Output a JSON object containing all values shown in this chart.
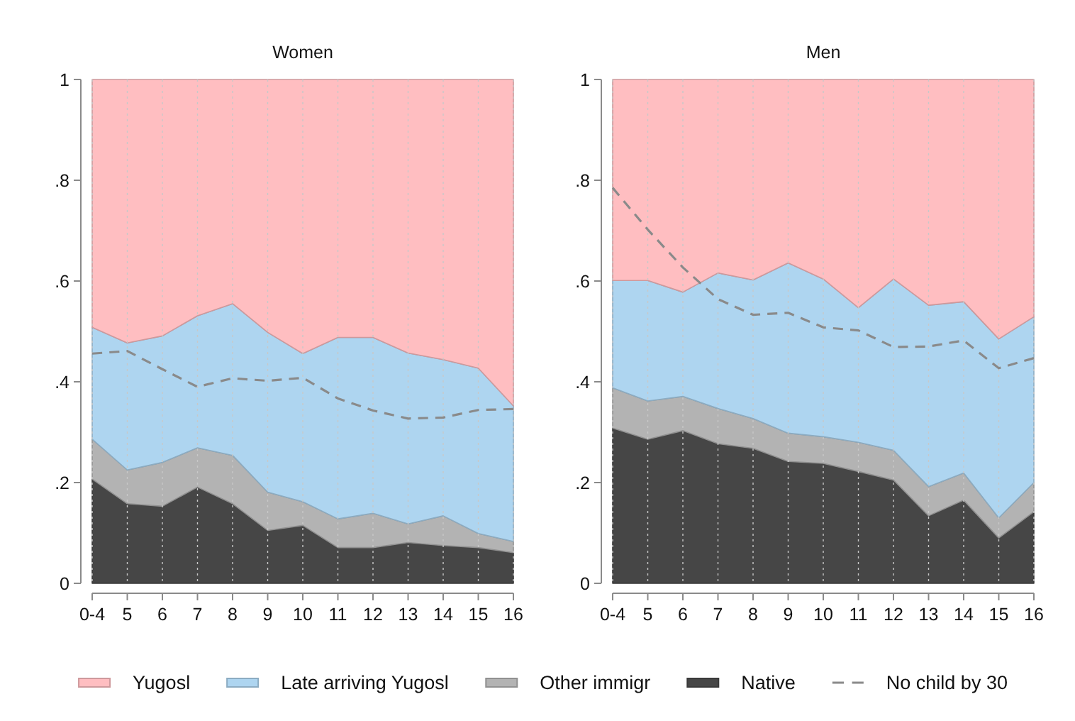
{
  "chart_data": [
    {
      "type": "area",
      "title": "Women",
      "stacked": true,
      "categories": [
        "0-4",
        "5",
        "6",
        "7",
        "8",
        "9",
        "10",
        "11",
        "12",
        "13",
        "14",
        "15",
        "16"
      ],
      "ylim": [
        0,
        1
      ],
      "yticks": [
        {
          "value": 0,
          "label": "0"
        },
        {
          "value": 0.2,
          "label": ".2"
        },
        {
          "value": 0.4,
          "label": ".4"
        },
        {
          "value": 0.6,
          "label": ".6"
        },
        {
          "value": 0.8,
          "label": ".8"
        },
        {
          "value": 1,
          "label": "1"
        }
      ],
      "grid": "x",
      "legend": "bottom",
      "series": [
        {
          "name": "Native",
          "color": "#464646",
          "values": [
            0.207,
            0.158,
            0.153,
            0.191,
            0.158,
            0.105,
            0.115,
            0.071,
            0.071,
            0.081,
            0.075,
            0.071,
            0.061
          ]
        },
        {
          "name": "Other immigr",
          "color": "#b3b3b3",
          "values": [
            0.079,
            0.067,
            0.087,
            0.078,
            0.096,
            0.076,
            0.047,
            0.057,
            0.068,
            0.037,
            0.059,
            0.028,
            0.022
          ]
        },
        {
          "name": "Late arriving Yugosl",
          "color": "#aed5f0",
          "values": [
            0.222,
            0.252,
            0.251,
            0.262,
            0.301,
            0.317,
            0.294,
            0.36,
            0.349,
            0.339,
            0.31,
            0.328,
            0.269
          ]
        },
        {
          "name": "Yugosl",
          "color": "#ffbec1",
          "values": [
            0.492,
            0.523,
            0.509,
            0.469,
            0.445,
            0.502,
            0.544,
            0.512,
            0.512,
            0.543,
            0.556,
            0.573,
            0.648
          ]
        },
        {
          "name": "No child by 30",
          "type": "line",
          "line_style": "dashed",
          "color": "#8a8a8a",
          "values": [
            0.456,
            0.461,
            0.425,
            0.39,
            0.407,
            0.402,
            0.408,
            0.367,
            0.343,
            0.327,
            0.329,
            0.344,
            0.346
          ]
        }
      ]
    },
    {
      "type": "area",
      "title": "Men",
      "stacked": true,
      "categories": [
        "0-4",
        "5",
        "6",
        "7",
        "8",
        "9",
        "10",
        "11",
        "12",
        "13",
        "14",
        "15",
        "16"
      ],
      "ylim": [
        0,
        1
      ],
      "yticks": [
        {
          "value": 0,
          "label": "0"
        },
        {
          "value": 0.2,
          "label": ".2"
        },
        {
          "value": 0.4,
          "label": ".4"
        },
        {
          "value": 0.6,
          "label": ".6"
        },
        {
          "value": 0.8,
          "label": ".8"
        },
        {
          "value": 1,
          "label": "1"
        }
      ],
      "grid": "x",
      "series": [
        {
          "color": "#464646",
          "values": [
            0.308,
            0.286,
            0.303,
            0.277,
            0.268,
            0.242,
            0.238,
            0.222,
            0.205,
            0.134,
            0.165,
            0.09,
            0.142
          ]
        },
        {
          "color": "#b3b3b3",
          "values": [
            0.08,
            0.076,
            0.068,
            0.07,
            0.059,
            0.056,
            0.053,
            0.058,
            0.059,
            0.058,
            0.054,
            0.04,
            0.058
          ]
        },
        {
          "color": "#aed5f0",
          "values": [
            0.213,
            0.239,
            0.207,
            0.269,
            0.275,
            0.338,
            0.313,
            0.267,
            0.34,
            0.36,
            0.34,
            0.355,
            0.329
          ]
        },
        {
          "color": "#ffbec1",
          "values": [
            0.399,
            0.399,
            0.422,
            0.384,
            0.398,
            0.364,
            0.396,
            0.453,
            0.396,
            0.448,
            0.441,
            0.515,
            0.471
          ]
        },
        {
          "type": "line",
          "line_style": "dashed",
          "color": "#8a8a8a",
          "values": [
            0.785,
            0.702,
            0.627,
            0.564,
            0.533,
            0.537,
            0.508,
            0.502,
            0.469,
            0.47,
            0.482,
            0.427,
            0.447
          ]
        }
      ]
    }
  ]
}
